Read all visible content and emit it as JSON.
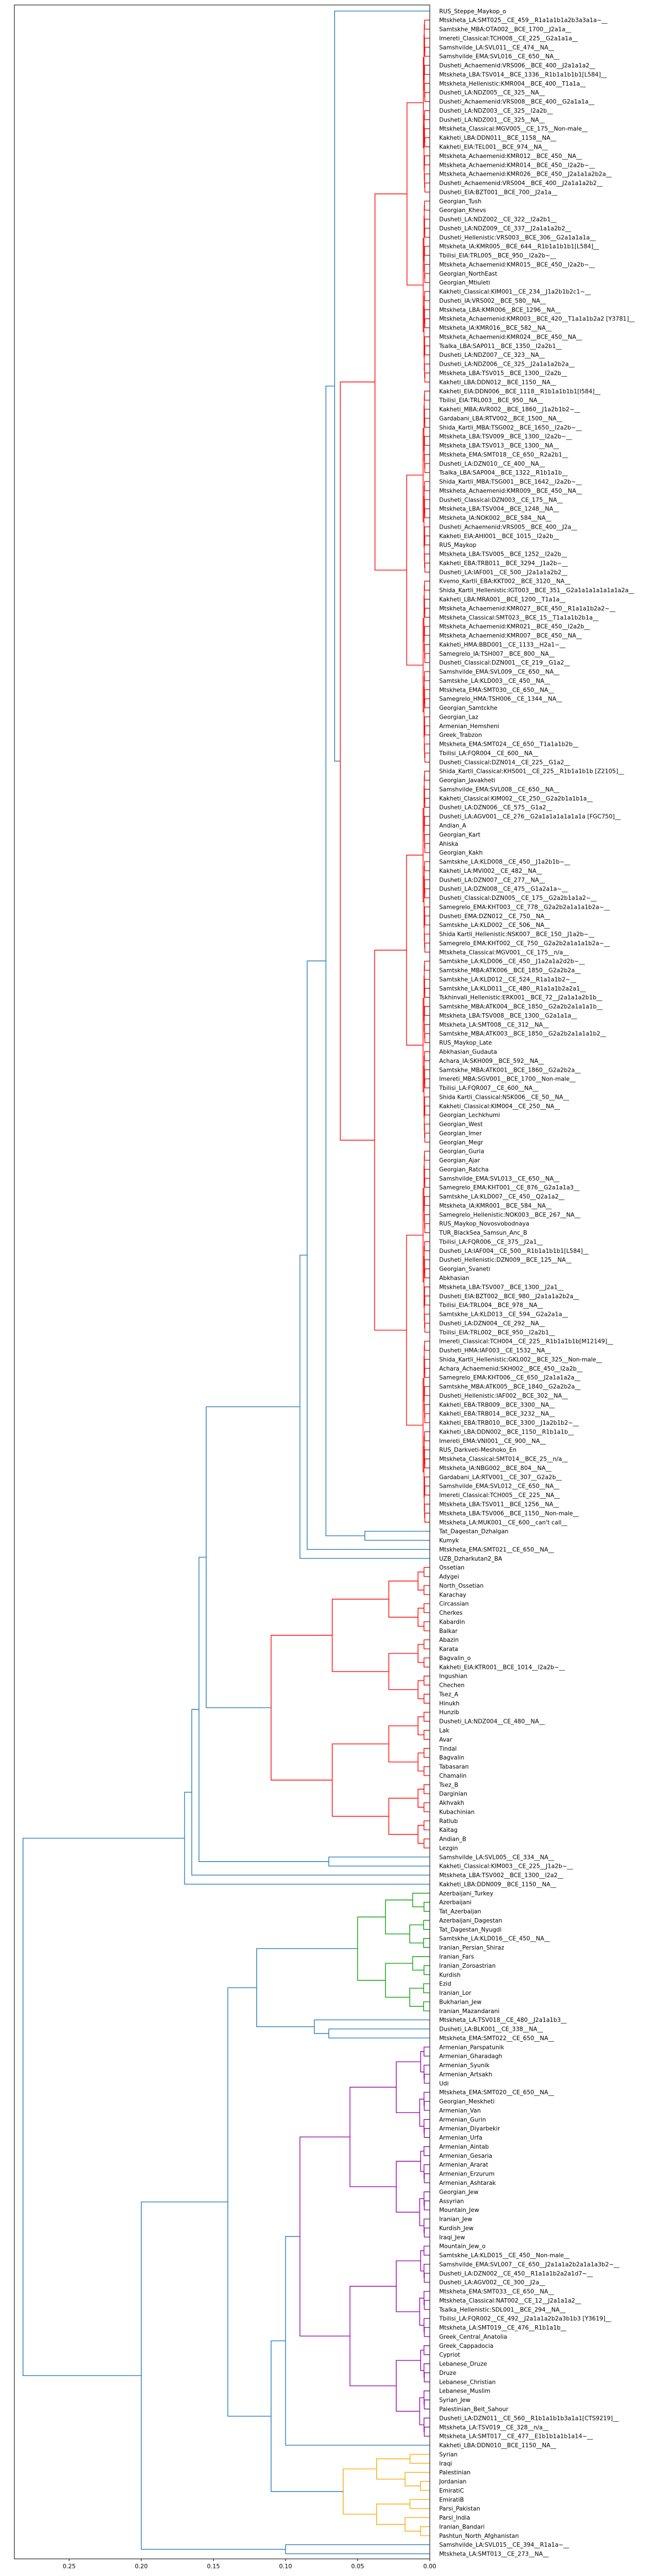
{
  "chart_data": {
    "type": "dendrogram",
    "orientation": "left",
    "title": "",
    "xlabel": "",
    "ylabel": "",
    "xlim": [
      0.288,
      0.0
    ],
    "xticks": [
      0.25,
      0.2,
      0.15,
      0.1,
      0.05,
      0.0
    ],
    "xtick_labels": [
      "0.25",
      "0.20",
      "0.15",
      "0.10",
      "0.05",
      "0.00"
    ],
    "grid": false,
    "link_color_default": "#1f77b4",
    "leaves": [
      "RUS_Steppe_Maykop_o",
      "Mtskheta_LA:SMT025__CE_459__R1a1a1b1a2b3a3a1a~__",
      "Samtskhe_MBA:OTA002__BCE_1700__J2a1a__",
      "Imereti_Classical:TCH008__CE_225__G2a1a1a__",
      "Samshvilde_LA:SVL011__CE_474__NA__",
      "Samshvilde_EMA:SVL016__CE_650__NA__",
      "Dusheti_Achaemenid:VRS006__BCE_400__J2a1a1a2__",
      "Mtskheta_LBA:TSV014__BCE_1336__R1b1a1b1b1[L584]__",
      "Mtskheta_Hellenistic:KMR004__BCE_400__T1a1a__",
      "Dusheti_LA:NDZ005__CE_325__NA__",
      "Dusheti_Achaemenid:VRS008__BCE_400__G2a1a1a__",
      "Dusheti_LA:NDZ003__CE_325__I2a2b__",
      "Dusheti_LA:NDZ001__CE_325__NA__",
      "Mtskheta_Classical:MGV005__CE_175__Non-male__",
      "Kakheti_LBA:DDN011__BCE_1158__NA__",
      "Kakheti_EIA:TEL001__BCE_974__NA__",
      "Mtskheta_Achaemenid:KMR012__BCE_450__NA__",
      "Mtskheta_Achaemenid:KMR014__BCE_450__I2a2b~__",
      "Mtskheta_Achaemenid:KMR026__BCE_450__J2a1a1a2b2a__",
      "Dusheti_Achaemenid:VRS004__BCE_400__J2a1a1a2b2__",
      "Dusheti_EIA:BZT001__BCE_700__J2a1a__",
      "Georgian_Tush",
      "Georgian_Khevs",
      "Dusheti_LA:NDZ002__CE_322__I2a2b1__",
      "Dusheti_LA:NDZ009__CE_337__J2a1a1a2b2__",
      "Dusheti_Hellenistic:VRS003__BCE_306__G2a1a1a1a__",
      "Mtskheta_IA:KMR005__BCE_644__R1b1a1b1b1[L584]__",
      "Tbilisi_EIA:TRL005__BCE_950__I2a2b~__",
      "Mtskheta_Achaemenid:KMR015__BCE_450__I2a2b~__",
      "Georgian_NorthEast",
      "Georgian_Mtiuleti",
      "Kakheti_Classical:KIM001__CE_234__J1a2b1b2c1~__",
      "Dusheti_IA:VRS002__BCE_580__NA__",
      "Mtskheta_LBA:KMR006__BCE_1296__NA__",
      "Mtskheta_Achaemenid:KMR003__BCE_420__T1a1a1b2a2 [Y3781]__",
      "Mtskheta_IA:KMR016__BCE_582__NA__",
      "Mtskheta_Achaemenid:KMR024__BCE_450__NA__",
      "Tsalka_LBA:SAP011__BCE_1350__I2a2b1__",
      "Dusheti_LA:NDZ007__CE_323__NA__",
      "Dusheti_LA:NDZ006__CE_325__J2a1a1a2b2a__",
      "Mtskheta_LBA:TSV015__BCE_1300__I2a2b__",
      "Kakheti_LBA:DDN012__BCE_1150__NA__",
      "Kakheti_EIA:DDN006__BCE_1118__R1b1a1b1b1[I584]__",
      "Tbilisi_EIA:TRL003__BCE_950__NA__",
      "Kakheti_MBA:AVR002__BCE_1860__J1a2b1b2~__",
      "Gardabani_LBA:RTV002__BCE_1500__NA__",
      "Shida_Kartli_MBA:TSG002__BCE_1650__I2a2b~__",
      "Mtskheta_LBA:TSV009__BCE_1300__I2a2b~__",
      "Mtskheta_LBA:TSV013__BCE_1300__NA__",
      "Mtskheta_EMA:SMT018__CE_650__R2a2b1__",
      "Dusheti_LA:DZN010__CE_400__NA__",
      "Tsalka_LBA:SAP004__BCE_1322__R1b1a1b__",
      "Shida_Kartli_MBA:TSG001__BCE_1642__I2a2b~__",
      "Mtskheta_Achaemenid:KMR009__BCE_450__NA__",
      "Dusheti_Classical:DZN003__CE_175__NA__",
      "Mtskheta_LBA:TSV004__BCE_1248__NA__",
      "Mtskheta_IA:NOK002__BCE_584__NA__",
      "Dusheti_Achaemenid:VRS005__BCE_400__J2a__",
      "Kakheti_EIA:AHI001__BCE_1015__I2a2b__",
      "RUS_Maykop",
      "Mtskheta_LBA:TSV005__BCE_1252__I2a2b__",
      "Kakheti_EBA:TRB011__BCE_3294__J1a2b~__",
      "Dusheti_LA:IAF001__CE_500__J2a1a1a2b2__",
      "Kvemo_Kartli_EBA:KKT002__BCE_3120__NA__",
      "Shida_Kartli_Hellenistic:IGT003__BCE_351__G2a1a1a1a1a1a1a2a__",
      "Kakheti_LBA:MRA001__BCE_1200__T1a1a__",
      "Mtskheta_Achaemenid:KMR027__BCE_450__R1a1a1b2a2~__",
      "Mtskheta_Classical:SMT023__BCE_15__T1a1a1b2b1a__",
      "Mtskheta_Achaemenid:KMR021__BCE_450__I2a2b__",
      "Mtskheta_Achaemenid:KMR007__BCE_450__NA__",
      "Kakheti_HMA:BBD001__CE_1133__H2a1~__",
      "Samegrelo_IA:TSH007__BCE_800__NA__",
      "Dusheti_Classical:DZN001__CE_219__G1a2__",
      "Samshvilde_EMA:SVL009__CE_650__NA__",
      "Samtskhe_LA:KLD003__CE_450__NA__",
      "Mtskheta_EMA:SMT030__CE_650__NA__",
      "Samegrelo_HMA:TSH006__CE_1344__NA__",
      "Georgian_Samtckhe",
      "Georgian_Laz",
      "Armenian_Hemsheni",
      "Greek_Trabzon",
      "Mtskheta_EMA:SMT024__CE_650__T1a1a1b2b__",
      "Tbilisi_LA:FQR004__CE_600__NA__",
      "Dusheti_Classical:DZN014__CE_225__G1a2__",
      "Shida_Kartli_Classical:KHS001__CE_225__R1b1a1b1b [Z2105]__",
      "Georgian_Javakheti",
      "Samshvilde_EMA:SVL008__CE_650__NA__",
      "Kakheti_Classical:KIM002__CE_250__G2a2b1a1b1a__",
      "Dusheti_LA:DZN006__CE_575__G1a2__",
      "Dusheti_LA:AGV001__CE_276__G2a1a1a1a1a1a1a [FGC750]__",
      "Andian_A",
      "Georgian_Kart",
      "Ahiska",
      "Georgian_Kakh",
      "Samtskhe_LA:KLD008__CE_450__J1a2b1b~__",
      "Kakheti_LA:MVI002__CE_482__NA__",
      "Dusheti_LA:DZN007__CE_277__NA__",
      "Dusheti_LA:DZN008__CE_475__G1a2a1a~__",
      "Dusheti_Classical:DZN005__CE_175__G2a2b1a1a2~__",
      "Samegrelo_EMA:KHT003__CE_778__G2a2b2a1a1a1b2a~__",
      "Dusheti_EMA:DZN012__CE_750__NA__",
      "Samtskhe_LA:KLD002__CE_506__NA__",
      "Shida Kartli_Hellenistic:NSK007__BCE_150__J1a2b~__",
      "Samegrelo_EMA:KHT002__CE_750__G2a2b2a1a1a1b2a~__",
      "Mtskheta_Classical:MGV001__CE_175__n/a__",
      "Samtskhe_LA:KLD006__CE_450__J1a2a1a2d2b~__",
      "Samtskhe_MBA:ATK006__BCE_1850__G2a2b2a__",
      "Samtskhe_LA:KLD012__CE_524__R1a1a1b2~__",
      "Samtskhe_LA:KLD011__CE_480__R1a1a1b2a2a1__",
      "Tskhinvali_Hellenistic:ERK001__BCE_72__J2a1a1a2b1b__",
      "Samtskhe_MBA:ATK004__BCE_1850__G2a2b2a1a1a1b__",
      "Mtskheta_LBA:TSV008__BCE_1300__G2a1a1a__",
      "Mtskheta_LA:SMT008__CE_312__NA__",
      "Samtskhe_MBA:ATK003__BCE_1850__G2a2b2a1a1a1b2__",
      "RUS_Maykop_Late",
      "Abkhasian_Gudauta",
      "Achara_IA:SKH009__BCE_592__NA__",
      "Samtskhe_MBA:ATK001__BCE_1860__G2a2b2a__",
      "Imereti_MBA:SGV001__BCE_1700__Non-male__",
      "Tbilisi_LA:FQR007__CE_600__NA__",
      "Shida Kartli_Classical:NSK006__CE_50__NA__",
      "Kakheti_Classical:KIM004__CE_250__NA__",
      "Georgian_Lechkhumi",
      "Georgian_West",
      "Georgian_Imer",
      "Georgian_Megr",
      "Georgian_Guria",
      "Georgian_Ajar",
      "Georgian_Ratcha",
      "Samshvilde_EMA:SVL013__CE_650__NA__",
      "Samegrelo_EMA:KHT001__CE_876__G2a1a1a3__",
      "Samtskhe_LA:KLD007__CE_450__Q2a1a2__",
      "Mtskheta_IA:KMR001__BCE_584__NA__",
      "Samegrelo_Hellenistic:NOK003__BCE_267__NA__",
      "RUS_Maykop_Novosvobodnaya",
      "TUR_BlackSea_Samsun_Anc_B",
      "Tbilisi_LA:FQR006__CE_375__J2a1__",
      "Dusheti_LA:IAF004__CE_500__R1b1a1b1b1[L584]__",
      "Dusheti_Hellenistic:DZN009__BCE_125__NA__",
      "Georgian_Svaneti",
      "Abkhasian",
      "Mtskheta_LBA:TSV007__BCE_1300__J2a1__",
      "Dusheti_EIA:BZT002__BCE_980__J2a1a1a2b2a__",
      "Tbilisi_EIA:TRL004__BCE_978__NA__",
      "Samtskhe_LA:KLD013__CE_594__G2a2a1a__",
      "Dusheti_LA:DZN004__CE_292__NA__",
      "Tbilisi_EIA:TRL002__BCE_950__I2a2b1__",
      "Imereti_Classical:TCH004__CE_225__R1b1a1b1b[M12149]__",
      "Dusheti_HMA:IAF003__CE_1532__NA__",
      "Shida_Kartli_Hellenistic:GKL002__BCE_325__Non-male__",
      "Achara_Achaemenid:SKH002__BCE_450__I2a2b__",
      "Samegrelo_EMA:KHT006__CE_650__J2a1a1a2a__",
      "Samtskhe_MBA:ATK005__BCE_1840__G2a2b2a__",
      "Dusheti_Hellenistic:IAF002__BCE_302__NA__",
      "Kakheti_EBA:TRB009__BCE_3300__NA__",
      "Kakheti_EBA:TRB014__BCE_3232__NA__",
      "Kakheti_EBA:TRB010__BCE_3300__J1a2b1b2~__",
      "Kakheti_LBA:DDN002__BCE_1150__R1b1a1b__",
      "Imereti_EMA:VNI001__CE_900__NA__",
      "RUS_Darkveti-Meshoko_En",
      "Mtskheta_Classical:SMT014__BCE_25__n/a__",
      "Mtskheta_IA:NBG002__BCE_804__NA__",
      "Gardabani_LA:RTV001__CE_307__G2a2b__",
      "Samshvilde_EMA:SVL012__CE_650__NA__",
      "Imereti_Classical:TCH005__CE_225__NA__",
      "Mtskheta_LBA:TSV011__BCE_1256__NA__",
      "Mtskheta_LBA:TSV006__BCE_1150__Non-male__",
      "Mtskheta_LA:MUK001__CE_600__can't call__",
      "Tat_Dagestan_Dzhalgan",
      "Kumyk",
      "Mtskheta_EMA:SMT021__CE_650__NA__",
      "UZB_Dzharkutan2_BA",
      "Ossetian",
      "Adygei",
      "North_Ossetian",
      "Karachay",
      "Circassian",
      "Cherkes",
      "Kabardin",
      "Balkar",
      "Abazin",
      "Karata",
      "Bagvalin_o",
      "Kakheti_EIA:KTR001__BCE_1014__I2a2b~__",
      "Ingushian",
      "Chechen",
      "Tsez_A",
      "Hinukh",
      "Hunzib",
      "Dusheti_LA:NDZ004__CE_480__NA__",
      "Lak",
      "Avar",
      "Tindal",
      "Bagvalin",
      "Tabasaran",
      "Chamalin",
      "Tsez_B",
      "Darginian",
      "Akhvakh",
      "Kubachinian",
      "Ratlub",
      "Kaitag",
      "Andian_B",
      "Lezgin",
      "Samshvilde_LA:SVL005__CE_334__NA__",
      "Kakheti_Classical:KIM003__CE_225__J1a2b~__",
      "Mtskheta_LBA:TSV002__BCE_1300__I2a2__",
      "Kakheti_LBA:DDN009__BCE_1150__NA__",
      "Azerbaijani_Turkey",
      "Azerbaijani",
      "Tat_Azerbaijan",
      "Azerbaijani_Dagestan",
      "Tat_Dagestan_Nyugdi",
      "Samtskhe_LA:KLD016__CE_450__NA__",
      "Iranian_Persian_Shiraz",
      "Iranian_Fars",
      "Iranian_Zoroastrian",
      "Kurdish",
      "Ezid",
      "Iranian_Lor",
      "Bukharian_Jew",
      "Iranian_Mazandarani",
      "Mtskheta_LA:TSV018__CE_480__J2a1a1b3__",
      "Dusheti_LA:BLK001__CE_338__NA__",
      "Mtskheta_EMA:SMT022__CE_650__NA__",
      "Armenian_Parspatunik",
      "Armenian_Gharadagh",
      "Armenian_Syunik",
      "Armenian_Artsakh",
      "Udi",
      "Mtskheta_EMA:SMT020__CE_650__NA__",
      "Georgian_Meskheti",
      "Armenian_Van",
      "Armenian_Gurin",
      "Armenian_Diyarbekir",
      "Armenian_Urfa",
      "Armenian_Aintab",
      "Armenian_Gesaria",
      "Armenian_Ararat",
      "Armenian_Erzurum",
      "Armenian_Ashtarak",
      "Georgian_Jew",
      "Assyrian",
      "Mountain_Jew",
      "Iranian_Jew",
      "Kurdish_Jew",
      "Iraqi_Jew",
      "Mountain_Jew_o",
      "Samtskhe_LA:KLD015__CE_450__Non-male__",
      "Samshvilde_EMA:SVL007__CE_650__J2a1a1a2b2a1a1a3b2~__",
      "Dusheti_LA:DZN002__CE_450__R1a1a1b2a2a1d7~__",
      "Dusheti_LA:AGV002__CE_300__J2a__",
      "Mtskheta_EMA:SMT033__CE_650__NA__",
      "Mtskheta_Classical:NAT002__CE_12__J2a1a1a2__",
      "Tsalka_Hellenistic:SDL001__BCE_294__NA__",
      "Tbilisi_LA:FQR002__CE_492__J2a1a1a2b2a3b1b3 [Y3619]__",
      "Mtskheta_LA:SMT019__CE_476__R1b1a1b__",
      "Greek_Central_Anatolia",
      "Greek_Cappadocia",
      "Cypriot",
      "Lebanese_Druze",
      "Druze",
      "Lebanese_Christian",
      "Lebanese_Muslim",
      "Syrian_Jew",
      "Palestinian_Beit_Sahour",
      "Dusheti_LA:DZN011__CE_560__R1b1a1b1b3a1a1[CTS9219]__",
      "Mtskheta_LA:TSV019__CE_328__n/a__",
      "Mtskheta_LA:SMT017__CE_477__E1b1b1a1b1a14~__",
      "Kakheti_LBA:DDN010__BCE_1150__NA__",
      "Syrian",
      "Iraqi",
      "Palestinian",
      "Jordanian",
      "EmiratiC",
      "EmiratiB",
      "Parsi_Pakistan",
      "Parsi_India",
      "Iranian_Bandari",
      "Pashtun_North_Afghanistan",
      "Samshvilde_LA:SVL015__CE_394__R1a1a~__",
      "Mtskheta_LA:SMT013__CE_273__NA__"
    ],
    "clusters": [
      {
        "color": "#ff0000",
        "first_leaf": 1,
        "last_leaf": 167,
        "height": 0.062
      },
      {
        "color": "#ff0000",
        "first_leaf": 172,
        "last_leaf": 203,
        "height": 0.11
      },
      {
        "color": "#00a000",
        "first_leaf": 208,
        "last_leaf": 221,
        "height": 0.05
      },
      {
        "color": "#9400a8",
        "first_leaf": 225,
        "last_leaf": 268,
        "height": 0.09
      },
      {
        "color": "#ffa500",
        "first_leaf": 270,
        "last_leaf": 279,
        "height": 0.06
      }
    ],
    "tree": {
      "h": 0.282,
      "children": [
        {
          "h": 0.17,
          "children": [
            {
              "h": 0.165,
              "children": [
                {
                  "h": 0.16,
                  "children": [
                    {
                      "h": 0.155,
                      "children": [
                        {
                          "h": 0.09,
                          "children": [
                            {
                              "h": 0.085,
                              "children": [
                                {
                                  "h": 0.072,
                                  "children": [
                                    {
                                      "h": 0.066,
                                      "children": [
                                        {
                                          "leaf": 0
                                        },
                                        {
                                          "cluster": 0
                                        }
                                      ]
                                    },
                                    {
                                      "h": 0.045,
                                      "children": [
                                        {
                                          "leaf": 168
                                        },
                                        {
                                          "leaf": 169
                                        }
                                      ]
                                    }
                                  ]
                                },
                                {
                                  "leaf": 170
                                }
                              ]
                            },
                            {
                              "leaf": 171
                            }
                          ]
                        },
                        {
                          "cluster": 1
                        }
                      ]
                    },
                    {
                      "h": 0.07,
                      "children": [
                        {
                          "leaf": 204
                        },
                        {
                          "leaf": 205
                        }
                      ]
                    }
                  ]
                },
                {
                  "leaf": 206
                }
              ]
            },
            {
              "leaf": 207
            }
          ]
        },
        {
          "h": 0.2,
          "children": [
            {
              "h": 0.14,
              "children": [
                {
                  "h": 0.12,
                  "children": [
                    {
                      "cluster": 2
                    },
                    {
                      "h": 0.08,
                      "children": [
                        {
                          "leaf": 222
                        },
                        {
                          "h": 0.07,
                          "children": [
                            {
                              "leaf": 223
                            },
                            {
                              "leaf": 224
                            }
                          ]
                        }
                      ]
                    }
                  ]
                },
                {
                  "h": 0.11,
                  "children": [
                    {
                      "h": 0.1,
                      "children": [
                        {
                          "cluster": 3
                        },
                        {
                          "leaf": 269
                        }
                      ]
                    },
                    {
                      "cluster": 4
                    }
                  ]
                }
              ]
            },
            {
              "h": 0.1,
              "children": [
                {
                  "leaf": 280
                },
                {
                  "leaf": 281
                }
              ]
            }
          ]
        }
      ]
    }
  }
}
